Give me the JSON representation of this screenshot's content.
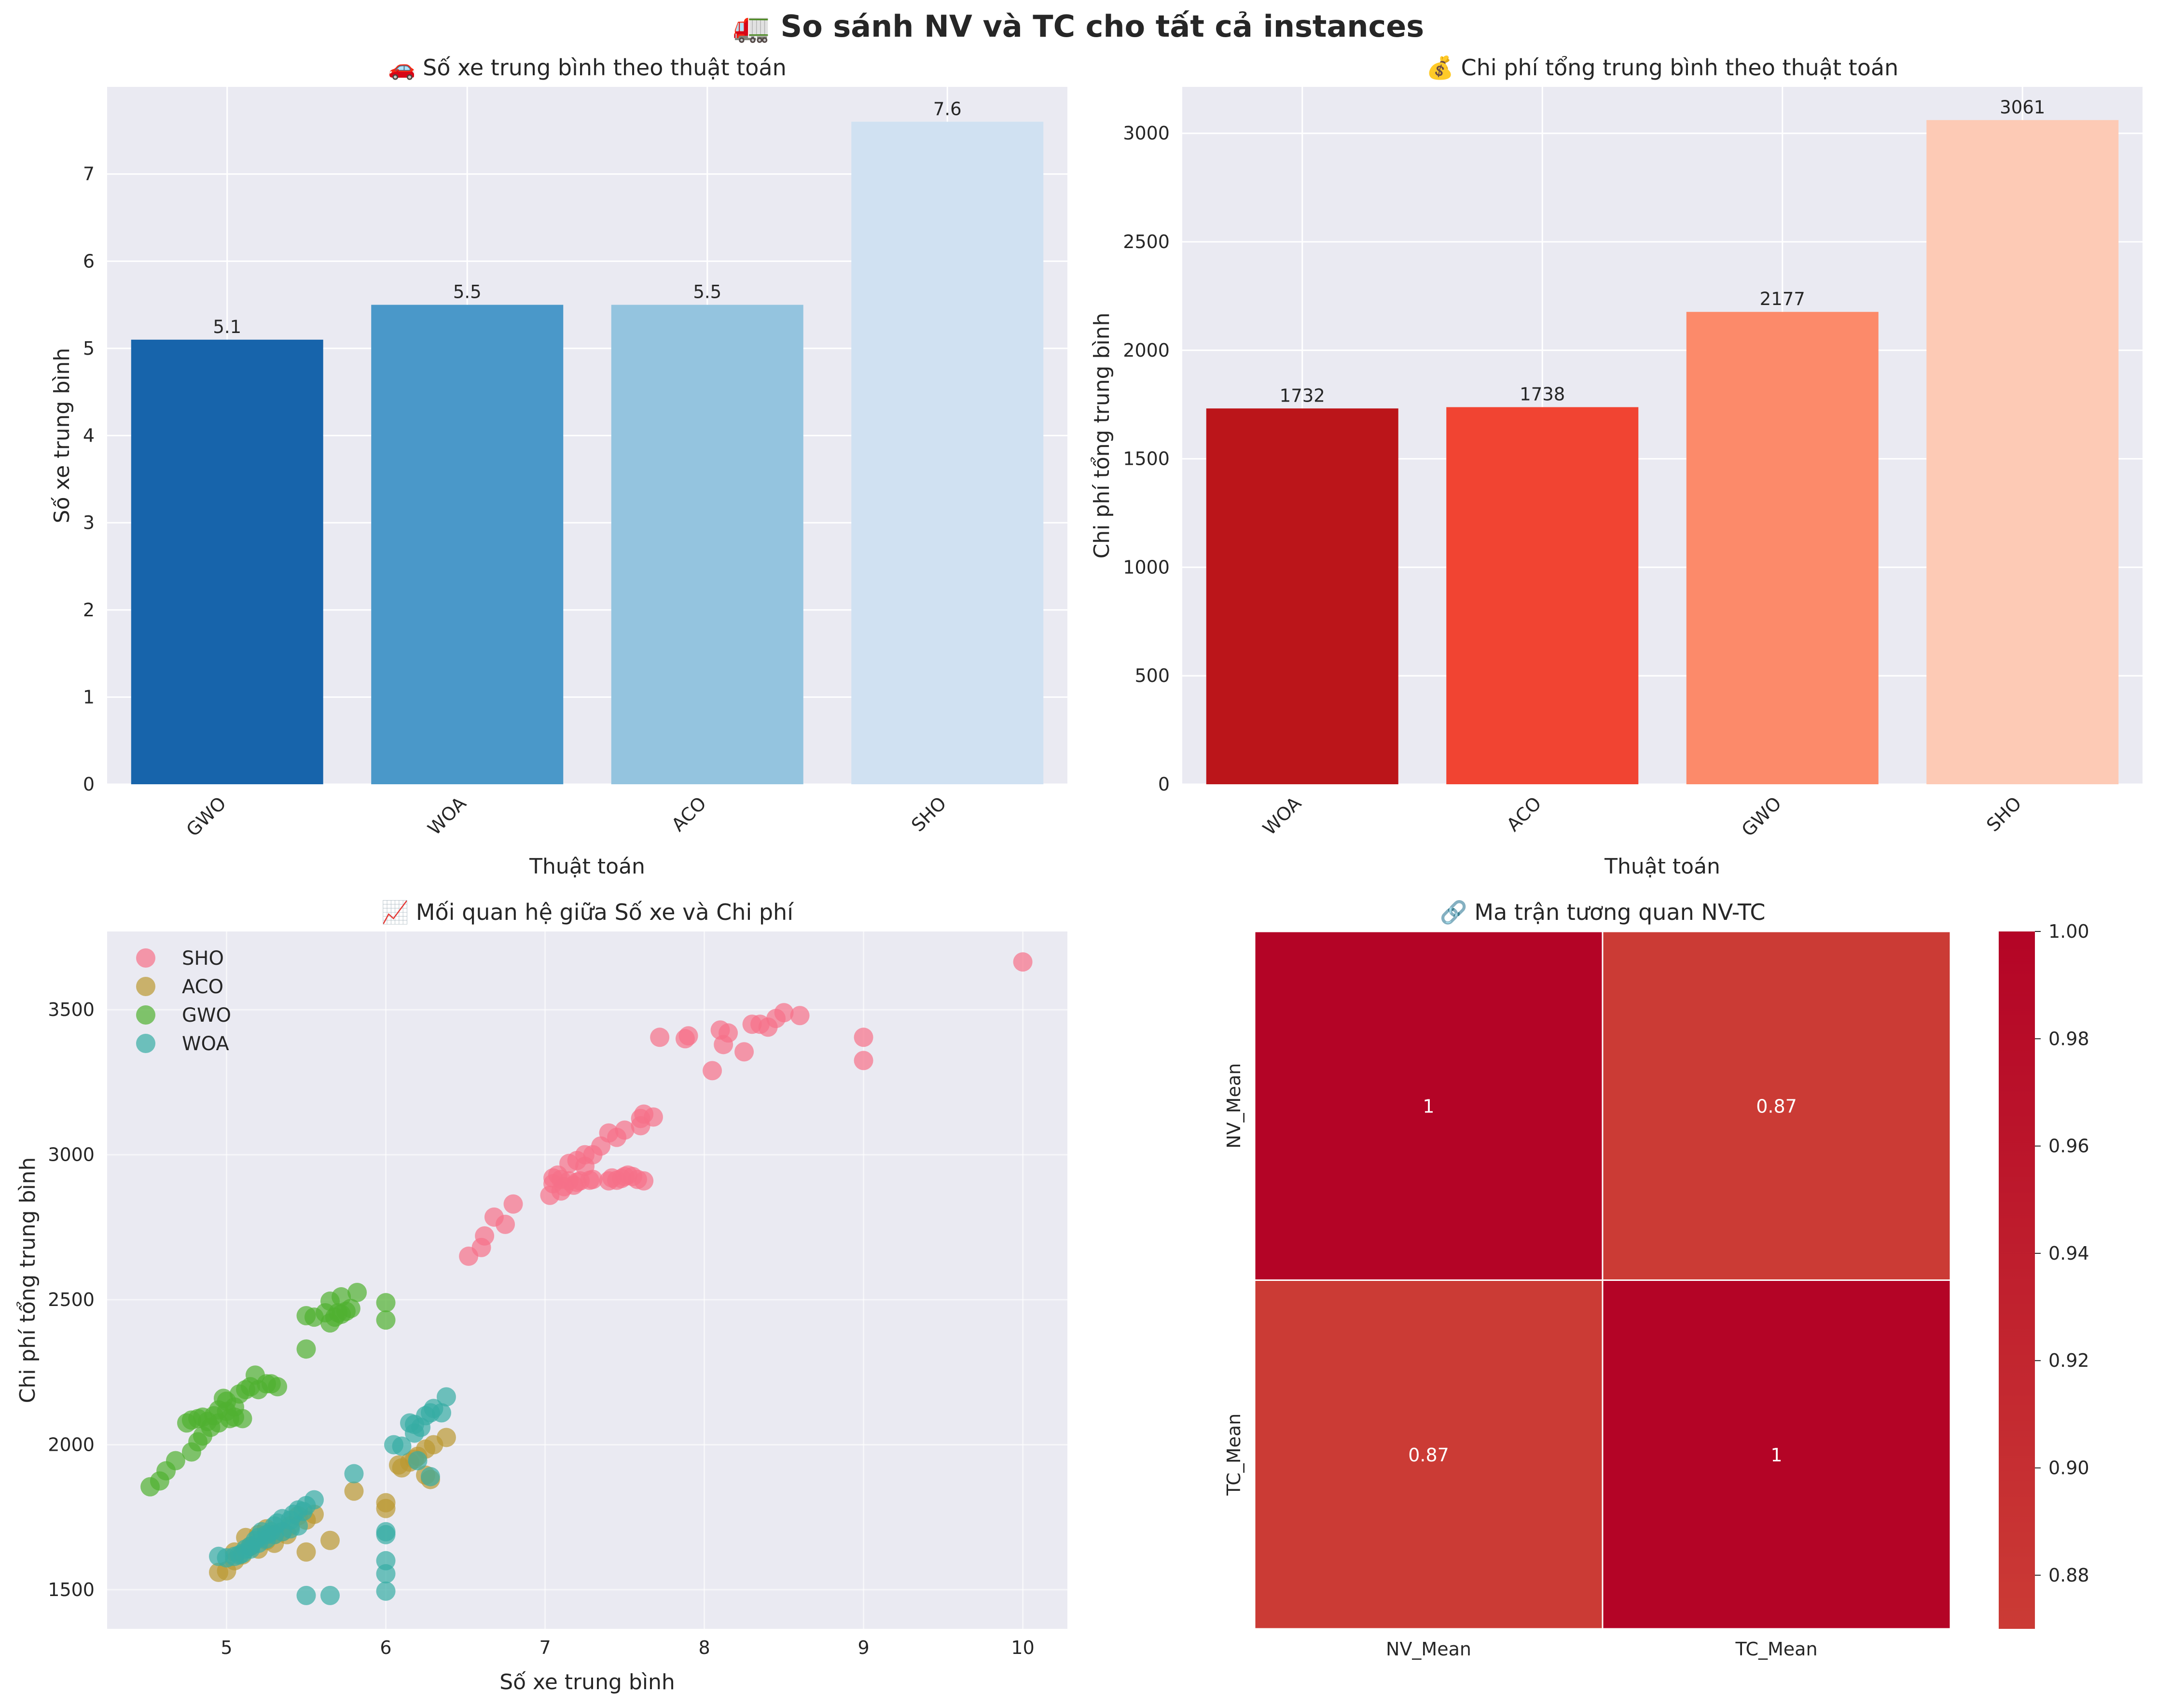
{
  "suptitle": "🚛 So sánh NV và TC cho tất cả instances",
  "chart_data": [
    {
      "type": "bar",
      "title": "🚗 Số xe trung bình theo thuật toán",
      "xlabel": "Thuật toán",
      "ylabel": "Số xe trung bình",
      "categories": [
        "GWO",
        "WOA",
        "ACO",
        "SHO"
      ],
      "values": [
        5.1,
        5.5,
        5.5,
        7.6
      ],
      "data_labels": [
        "5.1",
        "5.5",
        "5.5",
        "7.6"
      ],
      "ylim": [
        0,
        8
      ],
      "yticks": [
        0,
        1,
        2,
        3,
        4,
        5,
        6,
        7
      ],
      "colors": [
        "#1764ab",
        "#4a98c9",
        "#94c4df",
        "#d0e1f2"
      ],
      "grid": true
    },
    {
      "type": "bar",
      "title": "💰 Chi phí tổng trung bình theo thuật toán",
      "xlabel": "Thuật toán",
      "ylabel": "Chi phí tổng trung bình",
      "categories": [
        "WOA",
        "ACO",
        "GWO",
        "SHO"
      ],
      "values": [
        1732,
        1738,
        2177,
        3061
      ],
      "data_labels": [
        "1732",
        "1738",
        "2177",
        "3061"
      ],
      "ylim": [
        0,
        3214
      ],
      "yticks": [
        0,
        500,
        1000,
        1500,
        2000,
        2500,
        3000
      ],
      "colors": [
        "#bb151a",
        "#f14432",
        "#fc8a6a",
        "#fdcab5"
      ],
      "grid": true
    },
    {
      "type": "scatter",
      "title": "📈 Mối quan hệ giữa Số xe và Chi phí",
      "xlabel": "Số xe trung bình",
      "ylabel": "Chi phí tổng trung bình",
      "xlim": [
        4.25,
        10.28
      ],
      "ylim": [
        1365,
        3770
      ],
      "xticks": [
        5,
        6,
        7,
        8,
        9,
        10
      ],
      "yticks": [
        1500,
        2000,
        2500,
        3000,
        3500
      ],
      "legend_position": "top-left",
      "grid": true,
      "series": [
        {
          "name": "SHO",
          "color": "#f77189",
          "points": [
            [
              10.0,
              3665
            ],
            [
              8.6,
              3480
            ],
            [
              8.5,
              3490
            ],
            [
              8.45,
              3470
            ],
            [
              8.4,
              3440
            ],
            [
              8.35,
              3450
            ],
            [
              8.3,
              3450
            ],
            [
              8.25,
              3355
            ],
            [
              8.15,
              3420
            ],
            [
              8.1,
              3430
            ],
            [
              8.05,
              3290
            ],
            [
              8.12,
              3380
            ],
            [
              7.9,
              3410
            ],
            [
              7.88,
              3400
            ],
            [
              7.72,
              3405
            ],
            [
              9.0,
              3405
            ],
            [
              9.0,
              3325
            ],
            [
              7.68,
              3130
            ],
            [
              7.62,
              3140
            ],
            [
              7.6,
              3100
            ],
            [
              7.6,
              3125
            ],
            [
              7.62,
              2910
            ],
            [
              7.58,
              2915
            ],
            [
              7.55,
              2925
            ],
            [
              7.52,
              2930
            ],
            [
              7.5,
              2925
            ],
            [
              7.48,
              2918
            ],
            [
              7.45,
              2912
            ],
            [
              7.42,
              2920
            ],
            [
              7.4,
              2910
            ],
            [
              7.5,
              3085
            ],
            [
              7.45,
              3060
            ],
            [
              7.4,
              3075
            ],
            [
              7.35,
              3030
            ],
            [
              7.3,
              3000
            ],
            [
              7.25,
              3000
            ],
            [
              7.2,
              2980
            ],
            [
              7.25,
              2960
            ],
            [
              7.15,
              2970
            ],
            [
              7.3,
              2915
            ],
            [
              7.28,
              2912
            ],
            [
              7.22,
              2910
            ],
            [
              7.2,
              2905
            ],
            [
              7.15,
              2910
            ],
            [
              7.1,
              2915
            ],
            [
              7.08,
              2930
            ],
            [
              7.05,
              2920
            ],
            [
              7.05,
              2900
            ],
            [
              7.03,
              2860
            ],
            [
              7.1,
              2875
            ],
            [
              7.12,
              2890
            ],
            [
              7.18,
              2895
            ],
            [
              6.8,
              2830
            ],
            [
              6.75,
              2760
            ],
            [
              6.68,
              2785
            ],
            [
              6.62,
              2720
            ],
            [
              6.6,
              2680
            ],
            [
              6.52,
              2650
            ]
          ]
        },
        {
          "name": "ACO",
          "color": "#bb9832",
          "points": [
            [
              6.38,
              2025
            ],
            [
              6.3,
              2000
            ],
            [
              6.25,
              1985
            ],
            [
              6.28,
              1880
            ],
            [
              6.25,
              1895
            ],
            [
              6.2,
              1960
            ],
            [
              6.18,
              1950
            ],
            [
              6.15,
              1940
            ],
            [
              6.1,
              1920
            ],
            [
              6.08,
              1930
            ],
            [
              6.0,
              1800
            ],
            [
              6.0,
              1780
            ],
            [
              5.8,
              1840
            ],
            [
              5.65,
              1670
            ],
            [
              5.5,
              1630
            ],
            [
              5.55,
              1760
            ],
            [
              5.5,
              1740
            ],
            [
              5.45,
              1755
            ],
            [
              5.4,
              1720
            ],
            [
              5.35,
              1700
            ],
            [
              5.3,
              1690
            ],
            [
              5.25,
              1710
            ],
            [
              5.2,
              1690
            ],
            [
              5.15,
              1650
            ],
            [
              5.1,
              1620
            ],
            [
              5.05,
              1630
            ],
            [
              5.05,
              1600
            ],
            [
              5.0,
              1565
            ],
            [
              4.95,
              1560
            ],
            [
              5.2,
              1640
            ],
            [
              5.3,
              1660
            ],
            [
              5.12,
              1680
            ],
            [
              5.25,
              1670
            ],
            [
              5.38,
              1690
            ]
          ]
        },
        {
          "name": "GWO",
          "color": "#50b131",
          "points": [
            [
              4.52,
              1855
            ],
            [
              4.58,
              1875
            ],
            [
              4.62,
              1910
            ],
            [
              4.68,
              1945
            ],
            [
              4.78,
              1975
            ],
            [
              4.82,
              2010
            ],
            [
              4.85,
              2030
            ],
            [
              4.9,
              2060
            ],
            [
              4.75,
              2075
            ],
            [
              4.78,
              2085
            ],
            [
              4.82,
              2090
            ],
            [
              4.88,
              2080
            ],
            [
              4.92,
              2100
            ],
            [
              4.95,
              2120
            ],
            [
              5.0,
              2115
            ],
            [
              5.05,
              2095
            ],
            [
              5.1,
              2090
            ],
            [
              5.05,
              2130
            ],
            [
              5.0,
              2150
            ],
            [
              4.98,
              2160
            ],
            [
              5.08,
              2175
            ],
            [
              5.12,
              2190
            ],
            [
              5.15,
              2200
            ],
            [
              5.2,
              2190
            ],
            [
              5.25,
              2210
            ],
            [
              5.18,
              2240
            ],
            [
              5.28,
              2210
            ],
            [
              5.32,
              2200
            ],
            [
              5.5,
              2330
            ],
            [
              5.5,
              2445
            ],
            [
              5.55,
              2440
            ],
            [
              5.62,
              2455
            ],
            [
              5.65,
              2420
            ],
            [
              5.68,
              2440
            ],
            [
              5.7,
              2455
            ],
            [
              5.72,
              2450
            ],
            [
              5.75,
              2460
            ],
            [
              5.78,
              2470
            ],
            [
              5.72,
              2510
            ],
            [
              5.65,
              2495
            ],
            [
              5.82,
              2525
            ],
            [
              6.0,
              2490
            ],
            [
              6.0,
              2430
            ],
            [
              4.85,
              2095
            ],
            [
              4.95,
              2075
            ],
            [
              5.02,
              2090
            ]
          ]
        },
        {
          "name": "WOA",
          "color": "#36ada4",
          "points": [
            [
              6.38,
              2165
            ],
            [
              6.35,
              2110
            ],
            [
              6.3,
              2125
            ],
            [
              6.28,
              2110
            ],
            [
              6.25,
              2100
            ],
            [
              6.22,
              2060
            ],
            [
              6.18,
              2070
            ],
            [
              6.15,
              2075
            ],
            [
              6.18,
              2040
            ],
            [
              6.1,
              1995
            ],
            [
              6.05,
              2000
            ],
            [
              6.28,
              1890
            ],
            [
              6.2,
              1945
            ],
            [
              5.8,
              1900
            ],
            [
              6.0,
              1700
            ],
            [
              6.0,
              1690
            ],
            [
              6.0,
              1600
            ],
            [
              6.0,
              1555
            ],
            [
              6.0,
              1495
            ],
            [
              5.65,
              1480
            ],
            [
              5.5,
              1480
            ],
            [
              5.55,
              1810
            ],
            [
              5.5,
              1790
            ],
            [
              5.48,
              1770
            ],
            [
              5.45,
              1775
            ],
            [
              5.42,
              1760
            ],
            [
              5.4,
              1740
            ],
            [
              5.35,
              1745
            ],
            [
              5.32,
              1730
            ],
            [
              5.3,
              1720
            ],
            [
              5.28,
              1700
            ],
            [
              5.25,
              1690
            ],
            [
              5.22,
              1700
            ],
            [
              5.2,
              1680
            ],
            [
              5.18,
              1670
            ],
            [
              5.15,
              1650
            ],
            [
              5.12,
              1640
            ],
            [
              5.1,
              1625
            ],
            [
              5.08,
              1620
            ],
            [
              5.05,
              1615
            ],
            [
              5.0,
              1610
            ],
            [
              4.95,
              1615
            ],
            [
              5.45,
              1720
            ],
            [
              5.35,
              1700
            ],
            [
              5.3,
              1690
            ],
            [
              5.25,
              1675
            ],
            [
              5.2,
              1660
            ],
            [
              5.15,
              1640
            ],
            [
              5.4,
              1710
            ]
          ]
        }
      ]
    },
    {
      "type": "heatmap",
      "title": "🔗 Ma trận tương quan NV-TC",
      "x_labels": [
        "NV_Mean",
        "TC_Mean"
      ],
      "y_labels": [
        "NV_Mean",
        "TC_Mean"
      ],
      "values": [
        [
          1,
          0.87
        ],
        [
          0.87,
          1
        ]
      ],
      "annotations": [
        [
          "1",
          "0.87"
        ],
        [
          "0.87",
          "1"
        ]
      ],
      "colorbar_range": [
        0.87,
        1.0
      ],
      "colorbar_ticks": [
        "1.00",
        "0.98",
        "0.96",
        "0.94",
        "0.92",
        "0.90",
        "0.88"
      ],
      "colorbar_tick_values": [
        1.0,
        0.98,
        0.96,
        0.94,
        0.92,
        0.9,
        0.88
      ],
      "colormap": "RdBu_r",
      "colors": {
        "high": "#b40426",
        "low": "#cb3b35"
      }
    }
  ]
}
